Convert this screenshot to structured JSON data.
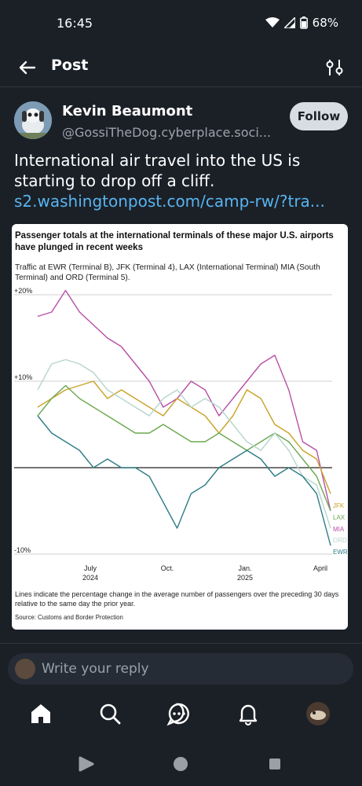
{
  "status_bar": {
    "time": "16:45",
    "battery": "68%"
  },
  "topbar": {
    "title": "Post"
  },
  "author": {
    "name": "Kevin Beaumont",
    "handle": "@GossiTheDog.cyberplace.soci...",
    "follow_label": "Follow"
  },
  "post": {
    "text": "International air travel into the US is starting to drop off a cliff.",
    "link": "s2.washingtonpost.com/camp-rw/?tra..."
  },
  "chart_data": {
    "type": "line",
    "title": "Passenger totals at the international terminals of these major U.S. airports have plunged in recent weeks",
    "subtitle": "Traffic at EWR (Terminal B), JFK (Terminal 4), LAX (International Terminal) MIA (South Terminal) and ORD (Terminal 5).",
    "ylim": [
      -10,
      20
    ],
    "yticks": [
      "+20%",
      "+10%",
      "-10%"
    ],
    "xticks": [
      "July",
      "Oct.",
      "Jan.",
      "April"
    ],
    "xtick_years": [
      "2024",
      "",
      "2025",
      ""
    ],
    "x": [
      "2024-06",
      "2024-06",
      "2024-06",
      "2024-07",
      "2024-07",
      "2024-08",
      "2024-08",
      "2024-09",
      "2024-09",
      "2024-10",
      "2024-10",
      "2024-11",
      "2024-11",
      "2024-12",
      "2024-12",
      "2025-01",
      "2025-01",
      "2025-02",
      "2025-02",
      "2025-03",
      "2025-03",
      "2025-04"
    ],
    "series": [
      {
        "name": "MIA",
        "color": "#b84fa6",
        "values": [
          17.5,
          18,
          20.5,
          18,
          16.5,
          15,
          14,
          12,
          10,
          7,
          8,
          10,
          9,
          6,
          8,
          10,
          12,
          13,
          9,
          3,
          2,
          -5
        ]
      },
      {
        "name": "JFK",
        "color": "#c9a227",
        "values": [
          7,
          8,
          9,
          9.5,
          10,
          8,
          9,
          8,
          7,
          6,
          8,
          7,
          6,
          4,
          6,
          9,
          8,
          5,
          4,
          2,
          1,
          -3
        ]
      },
      {
        "name": "LAX",
        "color": "#6aa84f",
        "values": [
          6,
          8,
          9.5,
          8,
          7,
          6,
          5,
          4,
          4,
          5,
          4,
          3,
          3,
          4,
          3,
          2,
          3,
          4,
          3,
          1,
          -1,
          -5
        ]
      },
      {
        "name": "ORD",
        "color": "#b7d6cd",
        "values": [
          9,
          12,
          12.5,
          12,
          11,
          9,
          8,
          7,
          6,
          8,
          9,
          7,
          8,
          7,
          5,
          3,
          2,
          4,
          2,
          -1,
          -2,
          -7
        ]
      },
      {
        "name": "EWR",
        "color": "#2e7d86",
        "values": [
          6,
          4,
          3,
          2,
          0,
          1,
          0,
          0,
          -1,
          -4,
          -7,
          -3,
          -2,
          0,
          1,
          2,
          1,
          -1,
          0,
          -1,
          -3,
          -9
        ]
      }
    ],
    "note": "Lines indicate the percentage change in the average number of passengers over the preceding 30 days relative to the same day the prior year.",
    "source": "Source: Customs and Border Protection"
  },
  "reply": {
    "placeholder": "Write your reply"
  },
  "colors": {
    "background": "#1b2027",
    "link": "#58b4f0",
    "follow_bg": "#d8dde3"
  },
  "icons": [
    "back-arrow-icon",
    "filter-icon",
    "home-icon",
    "search-icon",
    "chat-icon",
    "bell-icon"
  ]
}
